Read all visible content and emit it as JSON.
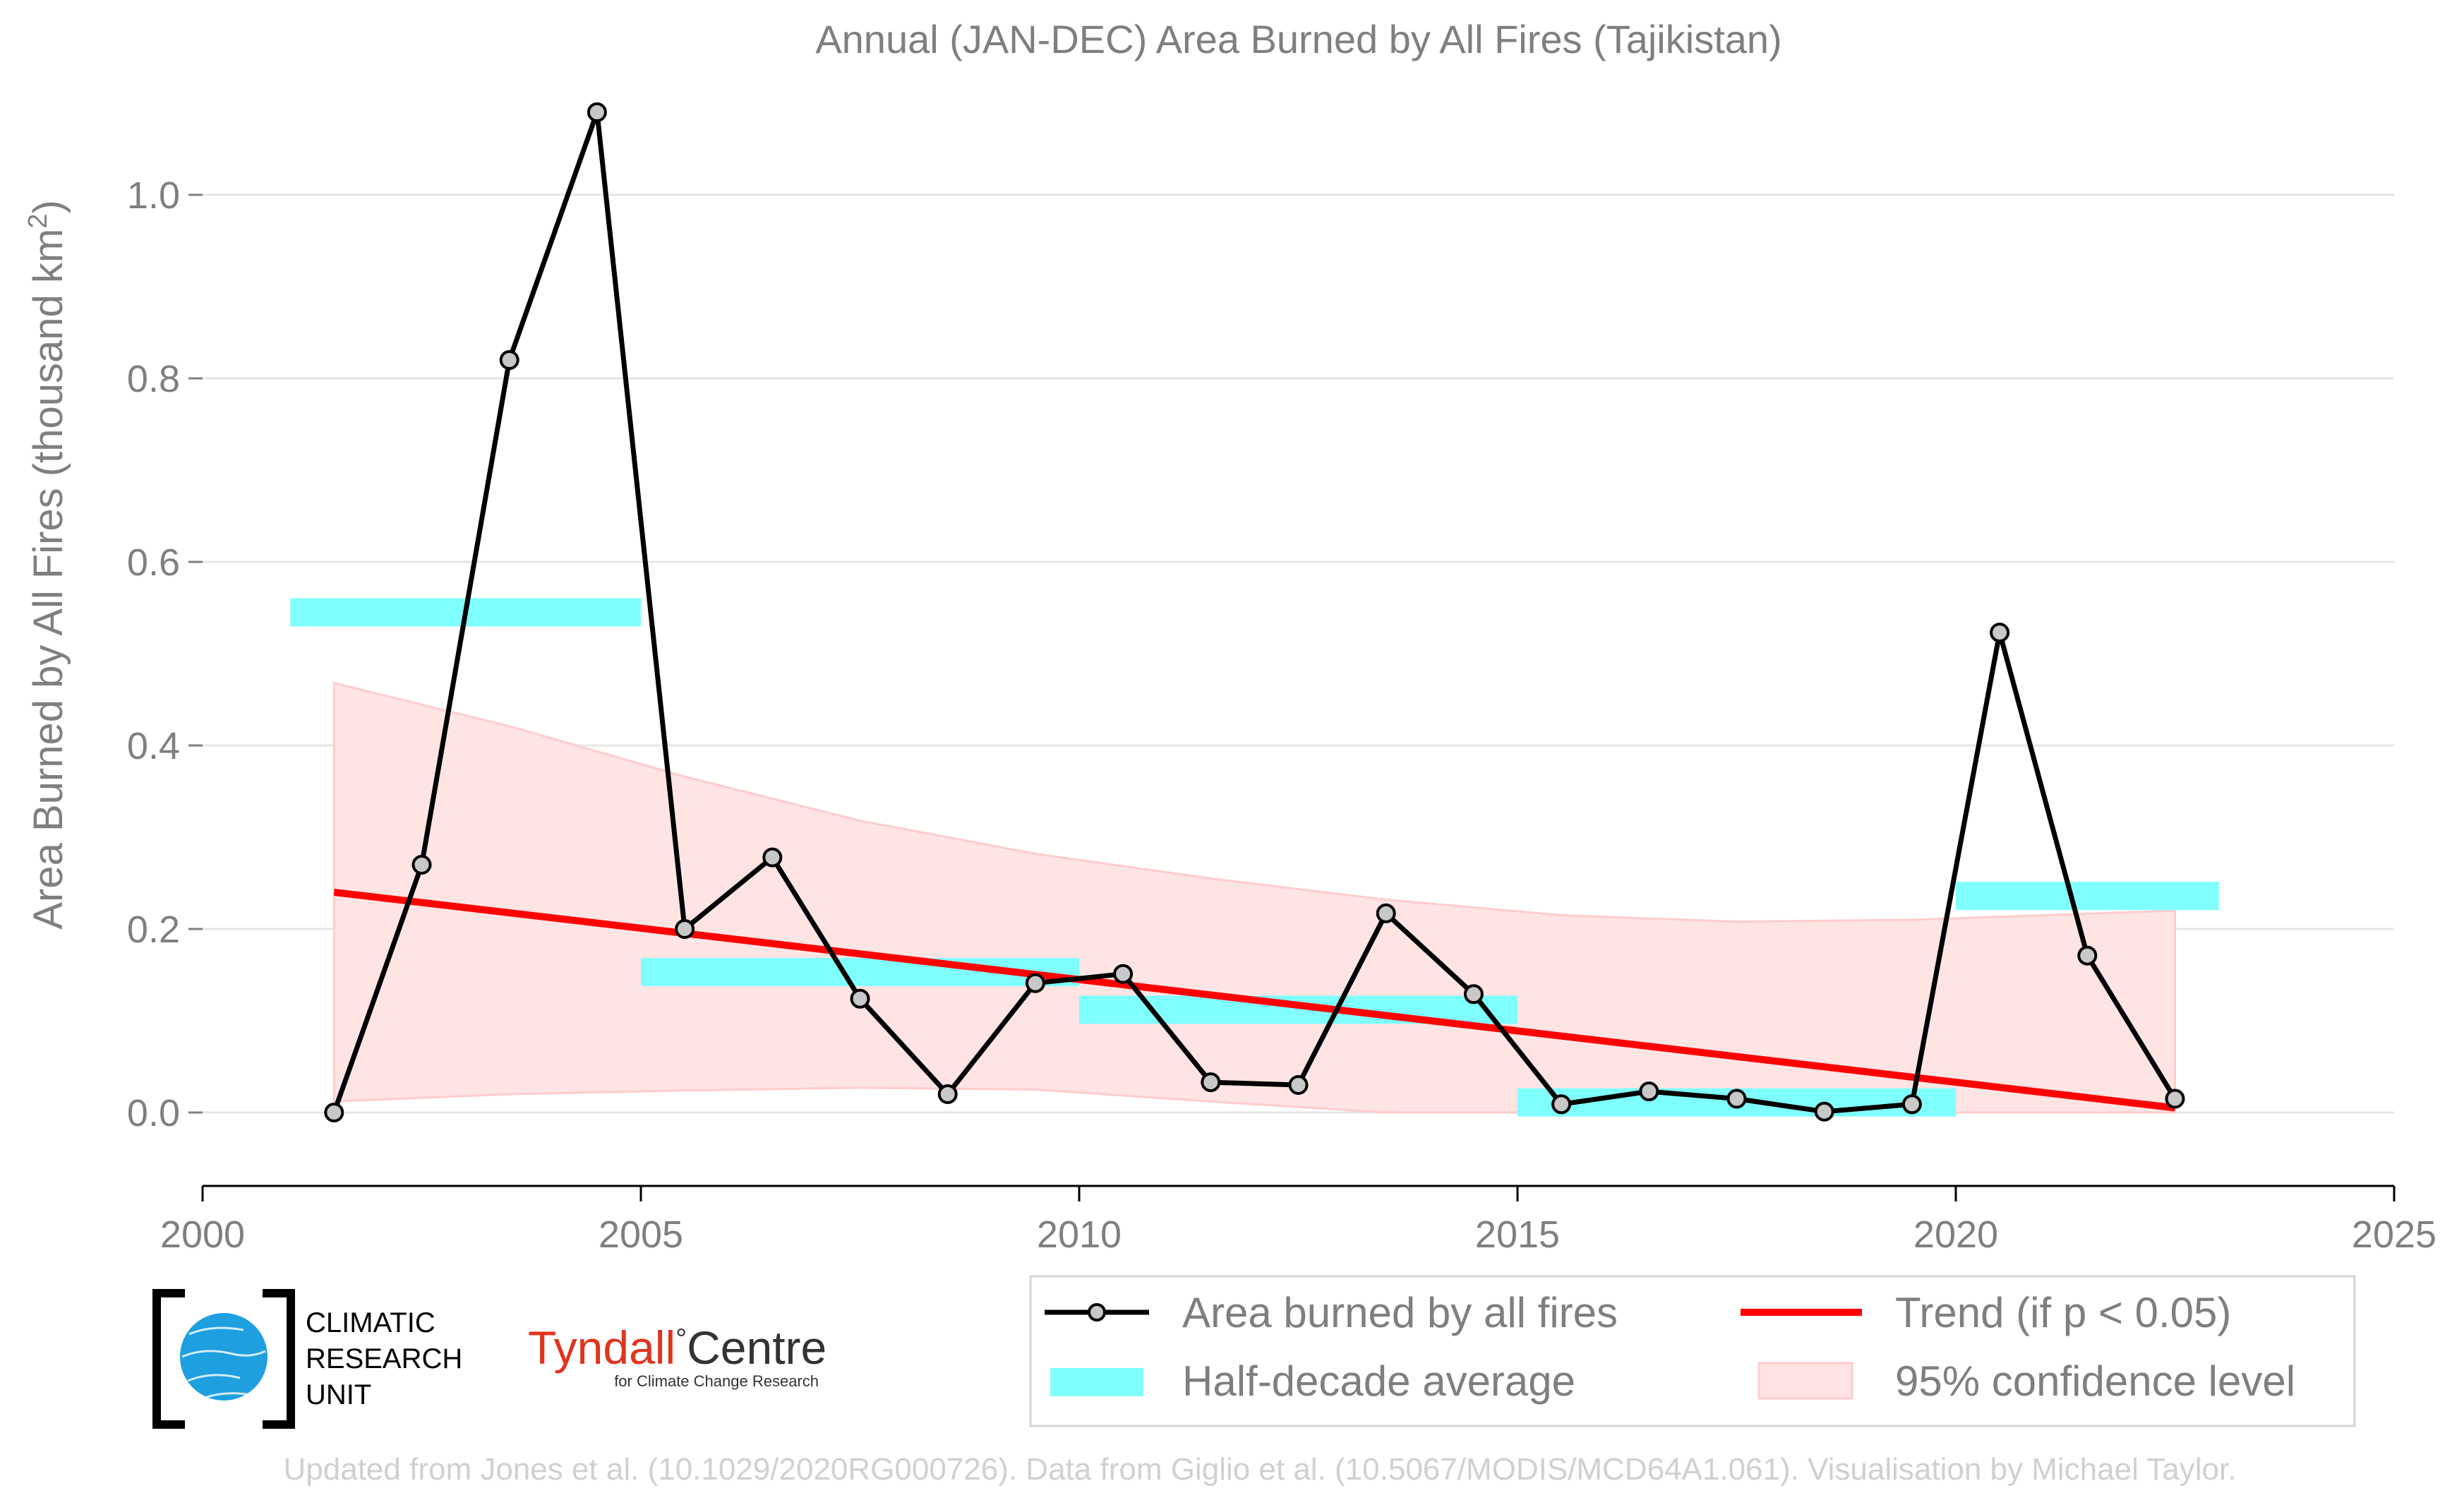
{
  "chart_data": {
    "type": "line",
    "title": "Annual (JAN-DEC) Area Burned by All Fires (Tajikistan)",
    "ylabel_main": "Area Burned by All Fires (thousand km",
    "ylabel_sup": "2",
    "ylabel_close": ")",
    "xlim": [
      2000,
      2025
    ],
    "ylim": [
      -0.08,
      1.12
    ],
    "x_ticks": [
      2000,
      2005,
      2010,
      2015,
      2020,
      2025
    ],
    "y_ticks": [
      0.0,
      0.2,
      0.4,
      0.6,
      0.8,
      1.0
    ],
    "y_tick_labels": [
      "0.0",
      "0.2",
      "0.4",
      "0.6",
      "0.8",
      "1.0"
    ],
    "grid": "horizontal",
    "series": [
      {
        "name": "Area burned by all fires",
        "color": "#000000",
        "marker_fill": "#c8c8c8",
        "x": [
          2001.5,
          2002.5,
          2003.5,
          2004.5,
          2005.5,
          2006.5,
          2007.5,
          2008.5,
          2009.5,
          2010.5,
          2011.5,
          2012.5,
          2013.5,
          2014.5,
          2015.5,
          2016.5,
          2017.5,
          2018.5,
          2019.5,
          2020.5,
          2021.5,
          2022.5
        ],
        "y": [
          0.0,
          0.27,
          0.82,
          1.09,
          0.2,
          0.278,
          0.124,
          0.02,
          0.141,
          0.151,
          0.033,
          0.03,
          0.217,
          0.129,
          0.009,
          0.023,
          0.015,
          0.001,
          0.009,
          0.523,
          0.171,
          0.015
        ]
      }
    ],
    "half_decade_average": {
      "name": "Half-decade average",
      "color": "#80ffff",
      "segments": [
        {
          "x0": 2001.0,
          "x1": 2005.0,
          "y": 0.545
        },
        {
          "x0": 2005.0,
          "x1": 2010.0,
          "y": 0.153
        },
        {
          "x0": 2010.0,
          "x1": 2015.0,
          "y": 0.112
        },
        {
          "x0": 2015.0,
          "x1": 2020.0,
          "y": 0.011
        },
        {
          "x0": 2020.0,
          "x1": 2023.0,
          "y": 0.236
        }
      ]
    },
    "trend": {
      "name": "Trend (if p < 0.05)",
      "color": "#ff0000",
      "x": [
        2001.5,
        2022.5
      ],
      "y": [
        0.24,
        0.005
      ]
    },
    "confidence": {
      "name": "95% confidence level",
      "color": "#ffcccc",
      "x": [
        2001.5,
        2003.5,
        2005.5,
        2007.5,
        2009.5,
        2011.5,
        2013.5,
        2015.5,
        2017.5,
        2019.5,
        2022.5
      ],
      "upper": [
        0.468,
        0.421,
        0.366,
        0.318,
        0.282,
        0.255,
        0.232,
        0.215,
        0.208,
        0.21,
        0.22
      ],
      "lower": [
        0.012,
        0.02,
        0.024,
        0.027,
        0.025,
        0.012,
        0.0,
        0.0,
        0.0,
        0.0,
        0.0
      ]
    },
    "legend_position": "bottom-right"
  },
  "logos": {
    "cru_line1": "CLIMATIC",
    "cru_line2": "RESEARCH",
    "cru_line3": "UNIT",
    "tyndall_left": "Tyndall",
    "tyndall_degree": "°",
    "tyndall_right": "Centre",
    "tyndall_sub": "for Climate Change Research"
  },
  "credit": "Updated from Jones et al. (10.1029/2020RG000726). Data from Giglio et al. (10.5067/MODIS/MCD64A1.061). Visualisation by Michael Taylor."
}
